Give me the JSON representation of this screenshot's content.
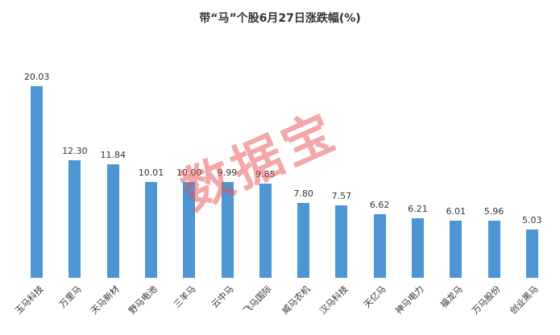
{
  "watermark_text": "数据宝",
  "chart_data": {
    "type": "bar",
    "title": "带“马”个股6月27日涨跌幅(%)",
    "categories": [
      "玉马科技",
      "万里马",
      "天马新材",
      "野马电池",
      "三羊马",
      "云中马",
      "飞马国际",
      "威马农机",
      "汉马科技",
      "天亿马",
      "神马电力",
      "福龙马",
      "万马股份",
      "创业黑马"
    ],
    "values": [
      20.03,
      12.3,
      11.84,
      10.01,
      10.0,
      9.99,
      9.85,
      7.8,
      7.57,
      6.62,
      6.21,
      6.01,
      5.96,
      5.03
    ],
    "value_labels": [
      "20.03",
      "12.30",
      "11.84",
      "10.01",
      "10.00",
      "9.99",
      "9.85",
      "7.80",
      "7.57",
      "6.62",
      "6.21",
      "6.01",
      "5.96",
      "5.03"
    ],
    "xlabel": "",
    "ylabel": "",
    "ylim": [
      0,
      21
    ],
    "grid": false,
    "legend": "none",
    "bar_color": "#4e96d3",
    "label_color": "#333333",
    "watermark_color": "rgba(232,80,80,0.50)"
  }
}
